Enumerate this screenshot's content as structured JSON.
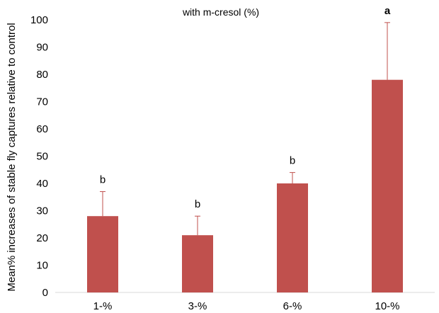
{
  "chart_data": {
    "type": "bar",
    "title": "with m-cresol (%)",
    "ylabel": "Mean% increases of stable fly captures relative to control",
    "xlabel": "",
    "categories": [
      "1-%",
      "3-%",
      "6-%",
      "10-%"
    ],
    "values": [
      28,
      21,
      40,
      78
    ],
    "error_upper": [
      9,
      7,
      4,
      21
    ],
    "significance_letters": [
      "b",
      "b",
      "b",
      "a"
    ],
    "ylim": [
      0,
      100
    ],
    "yticks": [
      "0",
      "10",
      "20",
      "30",
      "40",
      "50",
      "60",
      "70",
      "80",
      "90",
      "100"
    ],
    "grid": false,
    "bar_color": "#c0504d",
    "error_color": "#c0504d"
  }
}
